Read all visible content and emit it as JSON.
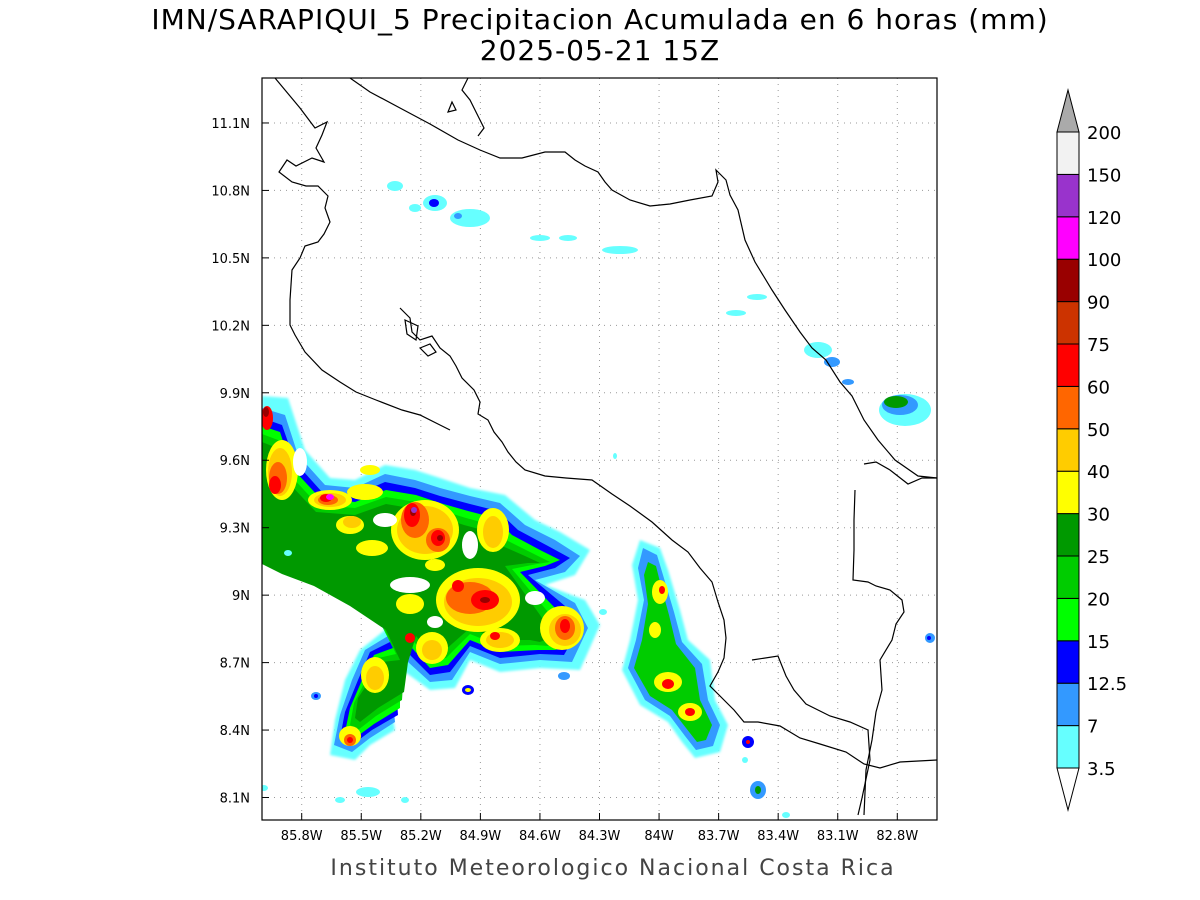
{
  "title_line1": "IMN/SARAPIQUI_5 Precipitacion Acumulada en 6 horas (mm)",
  "title_line2": "2025-05-21 15Z",
  "credit": "Instituto Meteorologico Nacional Costa Rica",
  "map": {
    "lon_range": [
      -86.0,
      -82.6
    ],
    "lat_range": [
      8.0,
      11.3
    ],
    "lat_ticks": [
      {
        "value": 11.1,
        "label": "11.1N"
      },
      {
        "value": 10.8,
        "label": "10.8N"
      },
      {
        "value": 10.5,
        "label": "10.5N"
      },
      {
        "value": 10.2,
        "label": "10.2N"
      },
      {
        "value": 9.9,
        "label": "9.9N"
      },
      {
        "value": 9.6,
        "label": "9.6N"
      },
      {
        "value": 9.3,
        "label": "9.3N"
      },
      {
        "value": 9.0,
        "label": "9N"
      },
      {
        "value": 8.7,
        "label": "8.7N"
      },
      {
        "value": 8.4,
        "label": "8.4N"
      },
      {
        "value": 8.1,
        "label": "8.1N"
      }
    ],
    "lon_ticks": [
      {
        "value": -85.8,
        "label": "85.8W"
      },
      {
        "value": -85.5,
        "label": "85.5W"
      },
      {
        "value": -85.2,
        "label": "85.2W"
      },
      {
        "value": -84.9,
        "label": "84.9W"
      },
      {
        "value": -84.6,
        "label": "84.6W"
      },
      {
        "value": -84.3,
        "label": "84.3W"
      },
      {
        "value": -84.0,
        "label": "84W"
      },
      {
        "value": -83.7,
        "label": "83.7W"
      },
      {
        "value": -83.4,
        "label": "83.4W"
      },
      {
        "value": -83.1,
        "label": "83.1W"
      },
      {
        "value": -82.8,
        "label": "82.8W"
      }
    ],
    "grid": "dotted"
  },
  "colorbar": {
    "levels": [
      {
        "label": "3.5",
        "color": "#66ffff"
      },
      {
        "label": "7",
        "color": "#3399ff"
      },
      {
        "label": "12.5",
        "color": "#0000ff"
      },
      {
        "label": "15",
        "color": "#00ff00"
      },
      {
        "label": "20",
        "color": "#00cc00"
      },
      {
        "label": "25",
        "color": "#009900"
      },
      {
        "label": "30",
        "color": "#ffff00"
      },
      {
        "label": "40",
        "color": "#ffcc00"
      },
      {
        "label": "50",
        "color": "#ff6600"
      },
      {
        "label": "60",
        "color": "#ff0000"
      },
      {
        "label": "75",
        "color": "#cc3300"
      },
      {
        "label": "90",
        "color": "#990000"
      },
      {
        "label": "100",
        "color": "#ff00ff"
      },
      {
        "label": "120",
        "color": "#9933cc"
      },
      {
        "label": "150",
        "color": "#f2f2f2"
      },
      {
        "label": "200",
        "color": "#aaaaaa"
      }
    ],
    "low_end_color": "#ffffff",
    "high_end_color": "#aaaaaa"
  },
  "rain_cells": [
    {
      "lon": -85.93,
      "lat": 9.55,
      "level": 9
    },
    {
      "lon": -85.75,
      "lat": 9.45,
      "level": 9
    },
    {
      "lon": -85.6,
      "lat": 9.43,
      "level": 11
    },
    {
      "lon": -85.43,
      "lat": 9.43,
      "level": 9
    },
    {
      "lon": -85.5,
      "lat": 9.35,
      "level": 9
    },
    {
      "lon": -85.2,
      "lat": 9.36,
      "level": 12
    },
    {
      "lon": -85.05,
      "lat": 9.28,
      "level": 11
    },
    {
      "lon": -84.75,
      "lat": 9.28,
      "level": 8
    },
    {
      "lon": -85.38,
      "lat": 9.18,
      "level": 7
    },
    {
      "lon": -85.25,
      "lat": 9.2,
      "level": 8
    },
    {
      "lon": -84.95,
      "lat": 9.05,
      "level": 10
    },
    {
      "lon": -84.82,
      "lat": 8.98,
      "level": 11
    },
    {
      "lon": -85.25,
      "lat": 8.92,
      "level": 9
    },
    {
      "lon": -85.1,
      "lat": 8.78,
      "level": 8
    },
    {
      "lon": -84.85,
      "lat": 8.82,
      "level": 9
    },
    {
      "lon": -84.4,
      "lat": 8.82,
      "level": 10
    },
    {
      "lon": -85.5,
      "lat": 8.6,
      "level": 9
    },
    {
      "lon": -85.45,
      "lat": 8.35,
      "level": 9
    },
    {
      "lon": -83.98,
      "lat": 9.0,
      "level": 8
    },
    {
      "lon": -83.95,
      "lat": 8.85,
      "level": 7
    },
    {
      "lon": -83.85,
      "lat": 8.62,
      "level": 9
    },
    {
      "lon": -83.75,
      "lat": 8.48,
      "level": 9
    },
    {
      "lon": -84.45,
      "lat": 9.18,
      "level": 7
    }
  ]
}
